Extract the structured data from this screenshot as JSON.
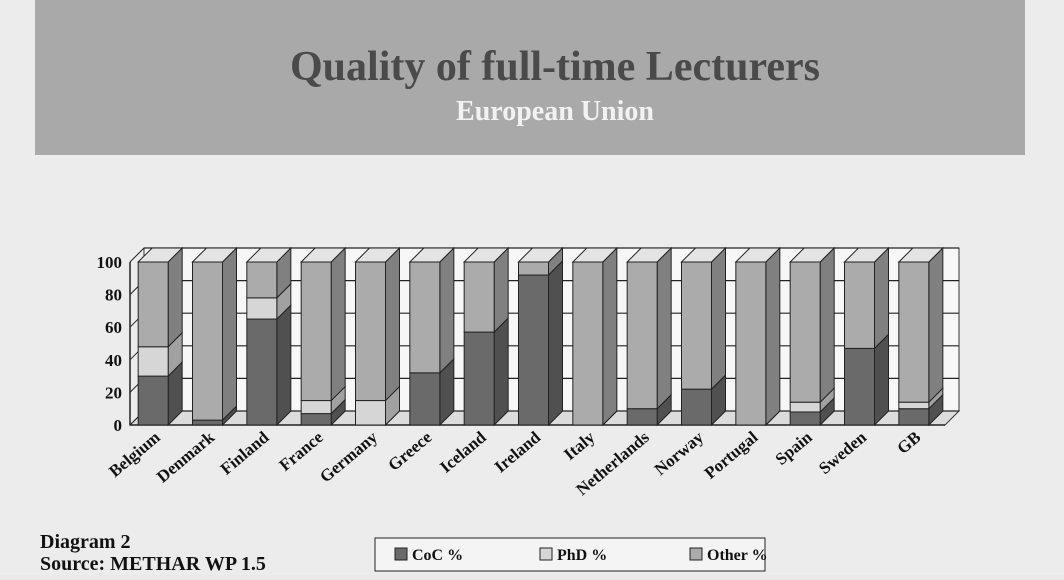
{
  "chart_data": {
    "type": "bar3d_stacked",
    "title": "Quality of full-time Lecturers",
    "subtitle": "European Union",
    "caption": "Diagram 2",
    "source": "Source: METHAR WP 1.5",
    "categories": [
      "Belgium",
      "Denmark",
      "Finland",
      "France",
      "Germany",
      "Greece",
      "Iceland",
      "Ireland",
      "Italy",
      "Netherlands",
      "Norway",
      "Portugal",
      "Spain",
      "Sweden",
      "GB"
    ],
    "series": [
      {
        "name": "CoC %",
        "color": "#6a6a6a",
        "values": [
          30,
          3,
          65,
          7,
          0,
          32,
          57,
          92,
          0,
          10,
          22,
          0,
          8,
          47,
          10
        ]
      },
      {
        "name": "PhD %",
        "color": "#d6d6d6",
        "values": [
          18,
          0,
          13,
          8,
          15,
          0,
          0,
          0,
          0,
          0,
          0,
          0,
          6,
          0,
          4
        ]
      },
      {
        "name": "Other %",
        "color": "#ababab",
        "values": [
          52,
          97,
          22,
          85,
          85,
          68,
          43,
          8,
          100,
          90,
          78,
          100,
          86,
          53,
          86
        ]
      }
    ],
    "ylim": [
      0,
      100
    ],
    "yticks": [
      0,
      20,
      40,
      60,
      80,
      100
    ],
    "grid": true
  }
}
